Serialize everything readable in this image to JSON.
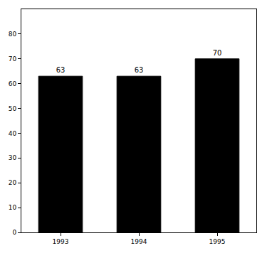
{
  "chart_data": {
    "type": "bar",
    "categories": [
      "1993",
      "1994",
      "1995"
    ],
    "values": [
      63,
      63,
      70
    ],
    "color": "#000000",
    "ylim": [
      0,
      90
    ],
    "yticks": [
      0,
      10,
      20,
      30,
      40,
      50,
      60,
      70,
      80
    ],
    "grid": false,
    "data_labels": true
  }
}
